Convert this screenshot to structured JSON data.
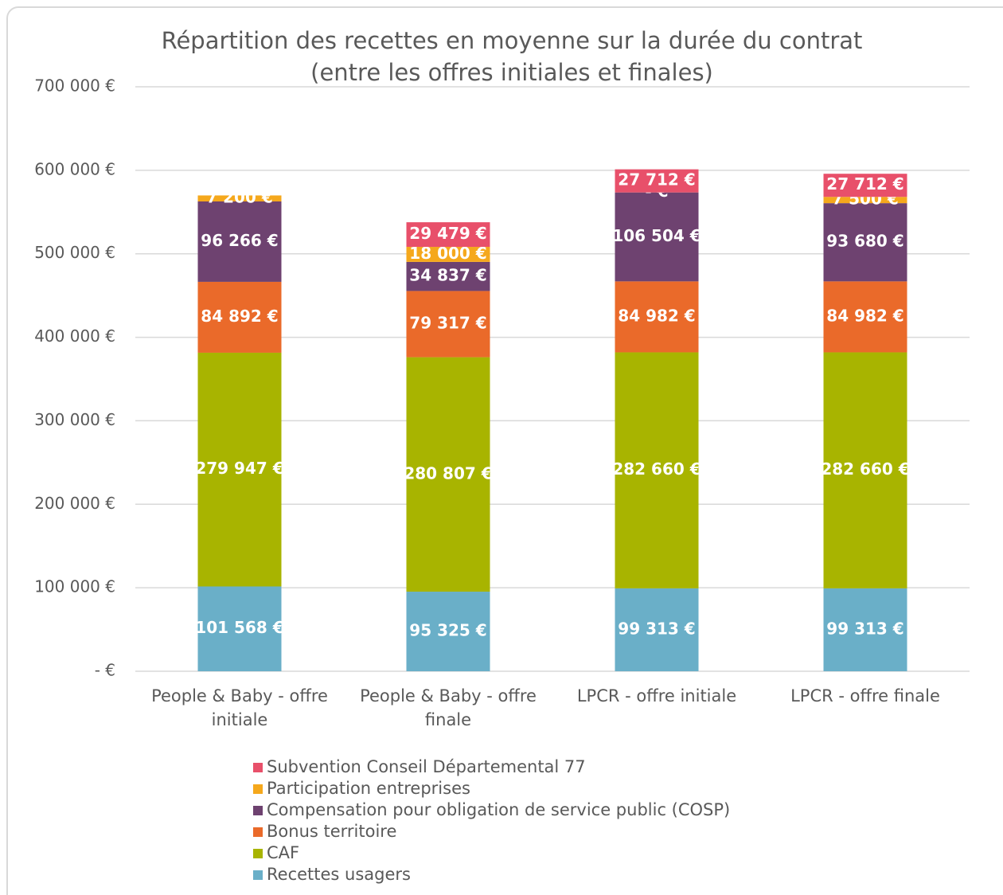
{
  "chart_data": {
    "type": "stacked_bar",
    "title": [
      "Répartition des recettes en moyenne sur la durée du contrat",
      "(entre les offres initiales et finales)"
    ],
    "categories": [
      "People & Baby - offre initiale",
      "People & Baby - offre finale",
      "LPCR - offre initiale",
      "LPCR - offre finale"
    ],
    "series": [
      {
        "name": "Recettes usagers",
        "color": "#6aafc8",
        "values": [
          101568,
          95325,
          99313,
          99313
        ],
        "value_labels": [
          "101 568 €",
          "95 325 €",
          "99 313 €",
          "99 313 €"
        ]
      },
      {
        "name": "CAF",
        "color": "#a8b400",
        "values": [
          279947,
          280807,
          282660,
          282660
        ],
        "value_labels": [
          "279 947 €",
          "280 807 €",
          "282 660 €",
          "282 660 €"
        ]
      },
      {
        "name": "Bonus territoire",
        "color": "#ea6a2a",
        "values": [
          84892,
          79317,
          84982,
          84982
        ],
        "value_labels": [
          "84 892 €",
          "79 317 €",
          "84 982 €",
          "84 982 €"
        ]
      },
      {
        "name": "Compensation pour obligation de service public (COSP)",
        "color": "#6e4270",
        "values": [
          96266,
          34837,
          106504,
          93680
        ],
        "value_labels": [
          "96 266 €",
          "34 837 €",
          "106 504 €",
          "93 680 €"
        ]
      },
      {
        "name": "Participation entreprises",
        "color": "#f5a81c",
        "values": [
          7200,
          18000,
          0,
          7500
        ],
        "value_labels": [
          "7 200 €",
          "18 000 €",
          "-   €",
          "7 500 €"
        ]
      },
      {
        "name": "Subvention Conseil Départemental 77",
        "color": "#e8506a",
        "values": [
          null,
          29479,
          27712,
          27712
        ],
        "value_labels": [
          null,
          "29 479 €",
          "27 712 €",
          "27 712 €"
        ]
      }
    ],
    "ylim": [
      0,
      700000
    ],
    "yticks": [
      {
        "value": 0,
        "label": "-   €"
      },
      {
        "value": 100000,
        "label": "100 000 €"
      },
      {
        "value": 200000,
        "label": "200 000 €"
      },
      {
        "value": 300000,
        "label": "300 000 €"
      },
      {
        "value": 400000,
        "label": "400 000 €"
      },
      {
        "value": 500000,
        "label": "500 000 €"
      },
      {
        "value": 600000,
        "label": "600 000 €"
      },
      {
        "value": 700000,
        "label": "700 000 €"
      }
    ],
    "grid": true,
    "legend": "bottom"
  }
}
